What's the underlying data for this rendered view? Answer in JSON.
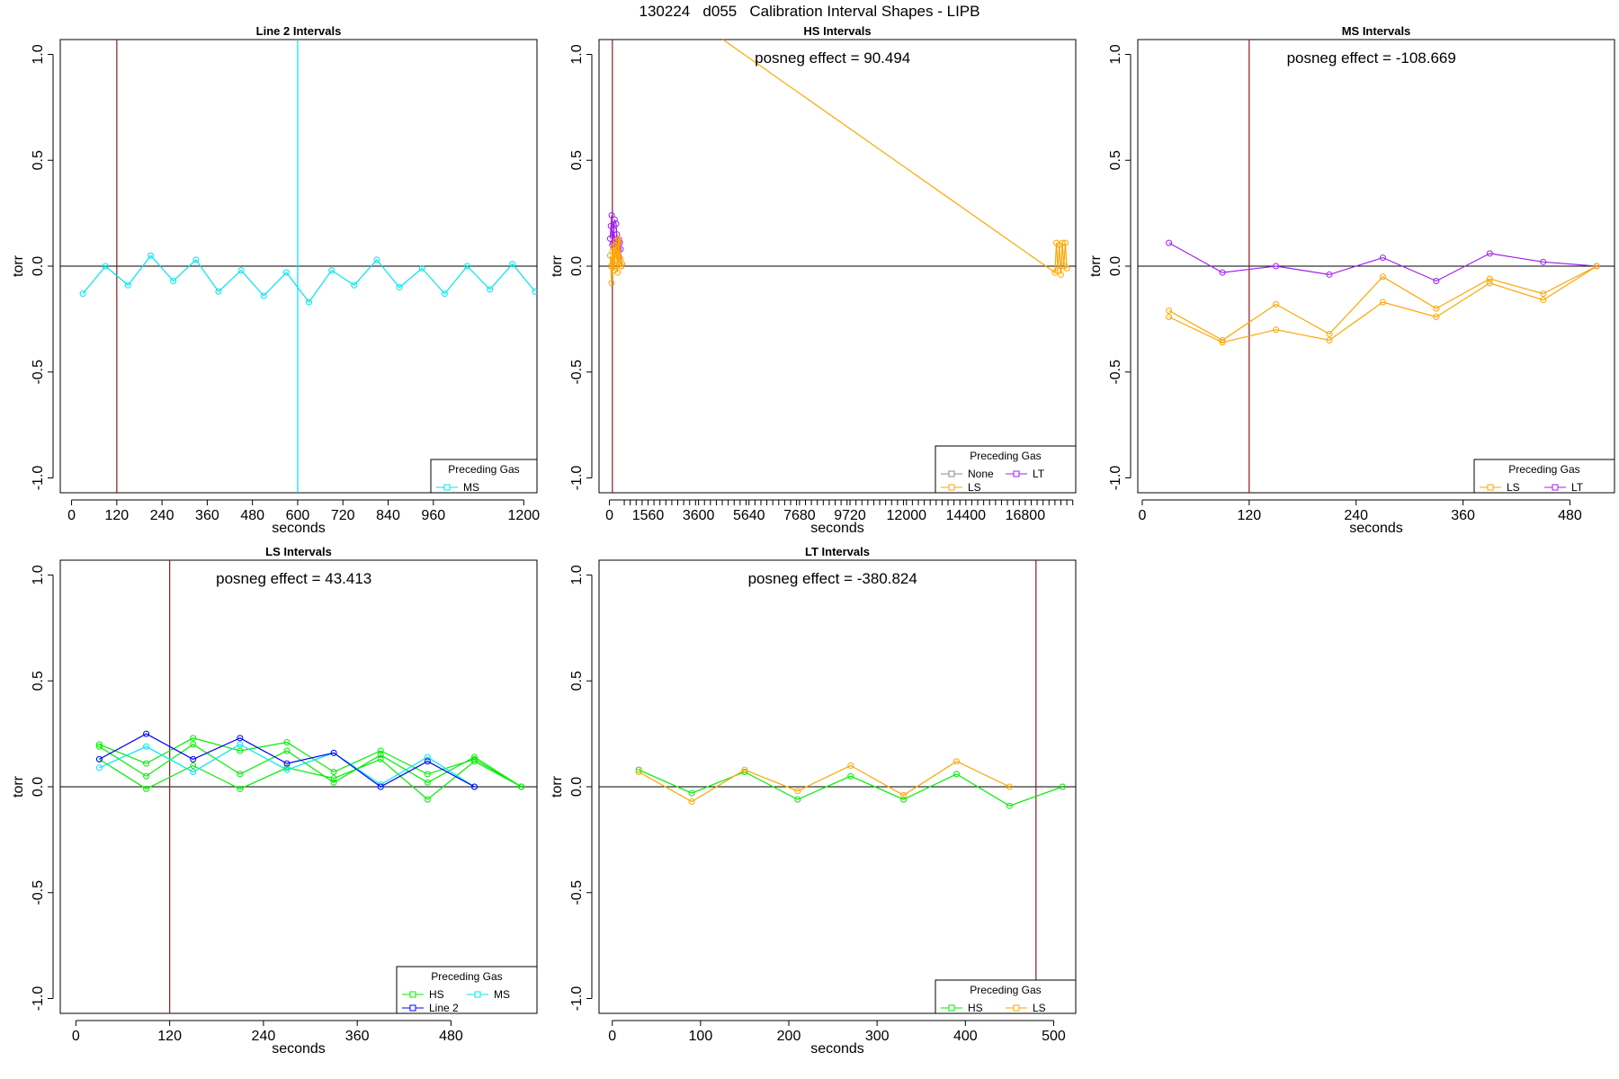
{
  "page_title": "130224   d055   Calibration Interval Shapes - LIPB",
  "colors": {
    "None": "#888888",
    "Line 2": "#0000ff",
    "MS": "#00e5ee",
    "HS": "#00ee00",
    "LS": "#ffa500",
    "LT": "#a020f0",
    "vline": "#8b1a1a",
    "zero": "#000000"
  },
  "chart_data": [
    {
      "type": "line",
      "title": "Line 2 Intervals",
      "xlabel": "seconds",
      "ylabel": "torr",
      "xlim": [
        -30,
        1235
      ],
      "ylim": [
        -1.07,
        1.07
      ],
      "xticks": [
        0,
        120,
        240,
        360,
        480,
        600,
        720,
        840,
        960,
        1200
      ],
      "xminor": [],
      "yticks": [
        -1.0,
        -0.5,
        0.0,
        0.5,
        1.0
      ],
      "ytick_labels": [
        "-1.0",
        "-0.5",
        "0.0",
        "0.5",
        "1.0"
      ],
      "vlines": [
        {
          "x": 120,
          "color": "vline"
        },
        {
          "x": 600,
          "color": "MS"
        }
      ],
      "annotation": "",
      "legend": {
        "title": "Preceding Gas",
        "entries": [
          "MS"
        ],
        "ncol": 1
      },
      "series": [
        {
          "name": "MS",
          "x": [
            30,
            90,
            150,
            210,
            270,
            330,
            390,
            450,
            510,
            570,
            630,
            690,
            750,
            810,
            870,
            930,
            990,
            1050,
            1110,
            1170,
            1230
          ],
          "y": [
            -0.13,
            0.0,
            -0.09,
            0.05,
            -0.07,
            0.03,
            -0.12,
            -0.02,
            -0.14,
            -0.03,
            -0.17,
            -0.02,
            -0.09,
            0.03,
            -0.1,
            -0.01,
            -0.13,
            0.0,
            -0.11,
            0.01,
            -0.12
          ]
        }
      ]
    },
    {
      "type": "line",
      "title": "HS Intervals",
      "xlabel": "seconds",
      "ylabel": "torr",
      "xlim": [
        -420,
        18840
      ],
      "ylim": [
        -1.07,
        1.07
      ],
      "xticks": [
        0,
        1560,
        3600,
        5640,
        7680,
        9720,
        12000,
        14400,
        16800
      ],
      "xminor": [
        600,
        840,
        1080,
        1320,
        1800,
        2040,
        2280,
        2520,
        2760,
        3000,
        3240,
        3480,
        3840,
        4080,
        4320,
        4560,
        4800,
        5040,
        5280,
        5520,
        5880,
        6120,
        6360,
        6600,
        6840,
        7080,
        7320,
        7560,
        7920,
        8160,
        8400,
        8640,
        8880,
        9120,
        9360,
        9600,
        9960,
        10200,
        10440,
        10680,
        10920,
        11160,
        11400,
        11640,
        11880,
        12240,
        12480,
        12720,
        12960,
        13200,
        13440,
        13680,
        13920,
        14160,
        14640,
        14880,
        15120,
        15360,
        15600,
        15840,
        16080,
        16320,
        16560,
        17040,
        17280,
        17520,
        17760,
        18000,
        18240,
        18480,
        18720
      ],
      "yticks": [
        -1.0,
        -0.5,
        0.0,
        0.5,
        1.0
      ],
      "ytick_labels": [
        "-1.0",
        "-0.5",
        "0.0",
        "0.5",
        "1.0"
      ],
      "vlines": [
        {
          "x": 120,
          "color": "vline"
        }
      ],
      "annotation": "posneg effect = 90.494",
      "legend": {
        "title": "Preceding Gas",
        "entries": [
          "None",
          "LT",
          "LS"
        ],
        "ncol": 2
      },
      "series": [
        {
          "name": "LT",
          "x": [
            30,
            90,
            150,
            210,
            270,
            330,
            390,
            450
          ],
          "y": [
            0.13,
            0.24,
            0.11,
            0.22,
            0.2,
            0.07,
            0.12,
            0.08
          ]
        },
        {
          "name": "LT",
          "x": [
            60,
            120,
            180,
            240,
            300,
            360,
            420,
            480
          ],
          "y": [
            0.19,
            0.1,
            0.17,
            0.09,
            0.15,
            0.08,
            0.11,
            0.0
          ]
        },
        {
          "name": "LS",
          "x": [
            30,
            90,
            150,
            210,
            270,
            330,
            390,
            450,
            510
          ],
          "y": [
            0.05,
            -0.08,
            0.09,
            0.0,
            0.12,
            -0.03,
            0.13,
            0.03,
            0.01
          ]
        },
        {
          "name": "LS",
          "x": [
            60,
            120,
            180,
            240,
            300,
            360,
            420,
            480
          ],
          "y": [
            0.0,
            0.07,
            -0.02,
            0.1,
            0.03,
            0.11,
            0.04,
            0.0
          ]
        },
        {
          "name": "LS",
          "x": [
            3000,
            18000,
            18060,
            18120,
            18180,
            18240,
            18300,
            18360,
            18420,
            18480
          ],
          "y": [
            1.2,
            -0.03,
            0.11,
            -0.02,
            0.1,
            -0.04,
            0.11,
            0.0,
            0.11,
            -0.01
          ]
        }
      ]
    },
    {
      "type": "line",
      "title": "MS Intervals",
      "xlabel": "seconds",
      "ylabel": "torr",
      "xlim": [
        -5,
        530
      ],
      "ylim": [
        -1.07,
        1.07
      ],
      "xticks": [
        0,
        120,
        240,
        360,
        480
      ],
      "xminor": [],
      "yticks": [
        -1.0,
        -0.5,
        0.0,
        0.5,
        1.0
      ],
      "ytick_labels": [
        "-1.0",
        "-0.5",
        "0.0",
        "0.5",
        "1.0"
      ],
      "vlines": [
        {
          "x": 120,
          "color": "vline"
        }
      ],
      "annotation": "posneg effect = -108.669",
      "legend": {
        "title": "Preceding Gas",
        "entries": [
          "LS",
          "LT"
        ],
        "ncol": 2
      },
      "series": [
        {
          "name": "LT",
          "x": [
            30,
            90,
            150,
            210,
            270,
            330,
            390,
            450,
            510
          ],
          "y": [
            0.11,
            -0.03,
            0.0,
            -0.04,
            0.04,
            -0.07,
            0.06,
            0.02,
            0.0
          ]
        },
        {
          "name": "LS",
          "x": [
            30,
            90,
            150,
            210,
            270,
            330,
            390,
            450,
            510
          ],
          "y": [
            -0.21,
            -0.35,
            -0.18,
            -0.32,
            -0.05,
            -0.2,
            -0.06,
            -0.13,
            0.0
          ]
        },
        {
          "name": "LS",
          "x": [
            30,
            90,
            150,
            210,
            270,
            330,
            390,
            450,
            510
          ],
          "y": [
            -0.24,
            -0.36,
            -0.3,
            -0.35,
            -0.17,
            -0.24,
            -0.08,
            -0.16,
            0.0
          ]
        }
      ]
    },
    {
      "type": "line",
      "title": "LS Intervals",
      "xlabel": "seconds",
      "ylabel": "torr",
      "xlim": [
        -20,
        590
      ],
      "ylim": [
        -1.07,
        1.07
      ],
      "xticks": [
        0,
        120,
        240,
        360,
        480
      ],
      "xminor": [],
      "yticks": [
        -1.0,
        -0.5,
        0.0,
        0.5,
        1.0
      ],
      "ytick_labels": [
        "-1.0",
        "-0.5",
        "0.0",
        "0.5",
        "1.0"
      ],
      "vlines": [
        {
          "x": 120,
          "color": "vline"
        }
      ],
      "annotation": "posneg effect = 43.413",
      "legend": {
        "title": "Preceding Gas",
        "entries": [
          "HS",
          "MS",
          "Line 2"
        ],
        "ncol": 2
      },
      "series": [
        {
          "name": "HS",
          "x": [
            30,
            90,
            150,
            210,
            270,
            330,
            390,
            450,
            510,
            570
          ],
          "y": [
            0.2,
            0.11,
            0.23,
            0.17,
            0.21,
            0.07,
            0.17,
            0.06,
            0.13,
            0.0
          ]
        },
        {
          "name": "HS",
          "x": [
            30,
            90,
            150,
            210,
            270,
            330,
            390,
            450,
            510,
            570
          ],
          "y": [
            0.19,
            0.05,
            0.2,
            0.06,
            0.17,
            0.02,
            0.15,
            0.02,
            0.14,
            0.0
          ]
        },
        {
          "name": "HS",
          "x": [
            30,
            90,
            150,
            210,
            270,
            330,
            390,
            450,
            510,
            570
          ],
          "y": [
            0.13,
            -0.01,
            0.1,
            -0.01,
            0.09,
            0.04,
            0.13,
            -0.06,
            0.12,
            0.0
          ]
        },
        {
          "name": "MS",
          "x": [
            30,
            90,
            150,
            210,
            270,
            330,
            390,
            450,
            510
          ],
          "y": [
            0.09,
            0.19,
            0.07,
            0.2,
            0.08,
            0.16,
            0.01,
            0.14,
            0.0
          ]
        },
        {
          "name": "Line 2",
          "x": [
            30,
            90,
            150,
            210,
            270,
            330,
            390,
            450,
            510
          ],
          "y": [
            0.13,
            0.25,
            0.13,
            0.23,
            0.11,
            0.16,
            0.0,
            0.12,
            0.0
          ]
        }
      ]
    },
    {
      "type": "line",
      "title": "LT Intervals",
      "xlabel": "seconds",
      "ylabel": "torr",
      "xlim": [
        -15,
        525
      ],
      "ylim": [
        -1.07,
        1.07
      ],
      "xticks": [
        0,
        100,
        200,
        300,
        400,
        500
      ],
      "xminor": [],
      "yticks": [
        -1.0,
        -0.5,
        0.0,
        0.5,
        1.0
      ],
      "ytick_labels": [
        "-1.0",
        "-0.5",
        "0.0",
        "0.5",
        "1.0"
      ],
      "vlines": [
        {
          "x": 480,
          "color": "vline"
        }
      ],
      "annotation": "posneg effect = -380.824",
      "legend": {
        "title": "Preceding Gas",
        "entries": [
          "HS",
          "LS"
        ],
        "ncol": 2
      },
      "series": [
        {
          "name": "HS",
          "x": [
            30,
            90,
            150,
            210,
            270,
            330,
            390,
            450,
            510
          ],
          "y": [
            0.08,
            -0.03,
            0.07,
            -0.06,
            0.05,
            -0.06,
            0.06,
            -0.09,
            0.0
          ]
        },
        {
          "name": "LS",
          "x": [
            30,
            90,
            150,
            210,
            270,
            330,
            390,
            450
          ],
          "y": [
            0.07,
            -0.07,
            0.08,
            -0.02,
            0.1,
            -0.04,
            0.12,
            0.0
          ]
        }
      ]
    }
  ]
}
